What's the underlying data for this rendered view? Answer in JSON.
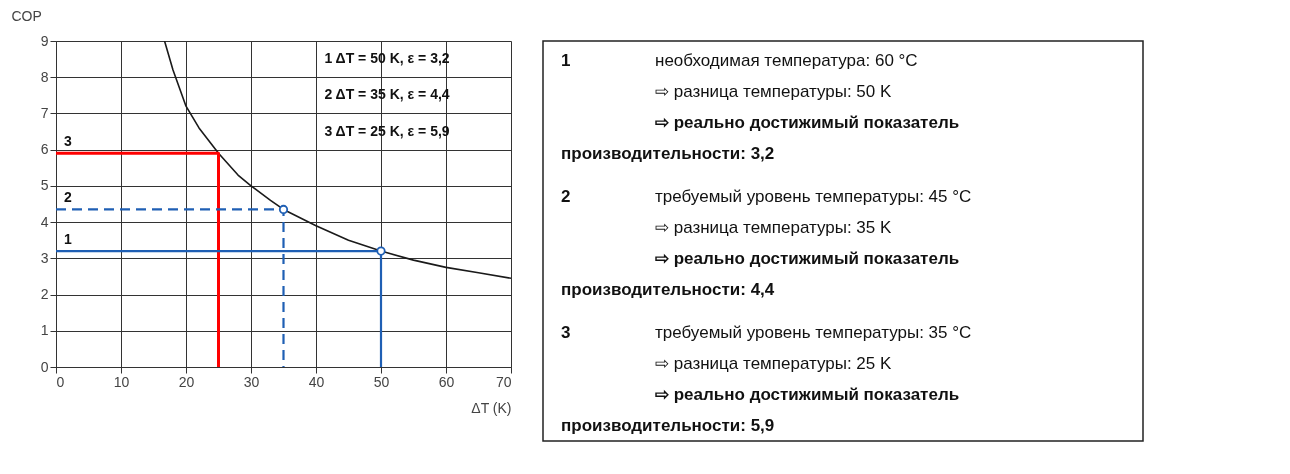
{
  "chart_data": [
    {
      "type": "line",
      "xlabel": "ΔT (K)",
      "ylabel": "COP",
      "xlim": [
        0,
        70
      ],
      "ylim": [
        0,
        9
      ],
      "xticks": [
        0,
        10,
        20,
        30,
        40,
        50,
        60,
        70
      ],
      "yticks": [
        0,
        1,
        2,
        3,
        4,
        5,
        6,
        7,
        8,
        9
      ],
      "grid": true,
      "annotations": [
        "1  ΔT = 50 K, ε = 3,2",
        "2  ΔT = 35 K, ε = 4,4",
        "3  ΔT = 25 K, ε = 5,9"
      ],
      "series": [
        {
          "x": [
            16.7,
            18,
            20,
            22,
            25,
            28,
            30,
            33,
            35,
            40,
            45,
            50,
            55,
            60,
            65,
            70
          ],
          "values": [
            9,
            8.2,
            7.2,
            6.6,
            5.9,
            5.3,
            5.0,
            4.6,
            4.35,
            3.9,
            3.5,
            3.2,
            2.95,
            2.75,
            2.6,
            2.45
          ],
          "color": "#1a1a1a"
        },
        {
          "name": "3",
          "x": [
            0,
            25,
            25
          ],
          "values": [
            5.9,
            5.9,
            0
          ],
          "color": "#ff0000"
        },
        {
          "name": "2",
          "x": [
            0,
            35,
            35
          ],
          "values": [
            4.35,
            4.35,
            0
          ],
          "color": "#1f5fb4",
          "line_style": "dashed"
        },
        {
          "name": "1",
          "x": [
            0,
            50,
            50
          ],
          "values": [
            3.2,
            3.2,
            0
          ],
          "color": "#1f5fb4"
        },
        {
          "type": "scatter",
          "x": [
            35,
            50
          ],
          "values": [
            4.35,
            3.2
          ],
          "color": "#1f5fb4",
          "marker": "circle"
        }
      ]
    },
    {
      "type": "other",
      "annotations": [
        "1",
        "необходимая температура: 60 °C",
        "⇨ разница температуры: 50 K",
        "⇨ реально достижимый показатель",
        "производительности: 3,2",
        "2",
        "требуемый уровень температуры: 45 °C",
        "⇨ разница температуры: 35 K",
        "⇨ реально достижимый показатель",
        "производительности: 4,4",
        "3",
        "требуемый уровень температуры: 35 °C",
        "⇨ разница температуры: 25 K",
        "⇨ реально достижимый показатель",
        "производительности: 5,9"
      ]
    }
  ]
}
